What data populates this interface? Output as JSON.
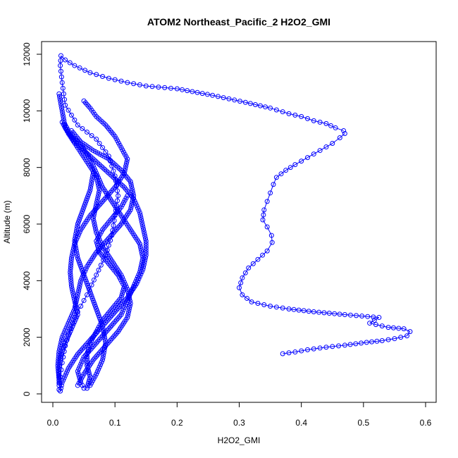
{
  "chart_data": {
    "type": "scatter",
    "title": "ATOM2 Northeast_Pacific_2 H2O2_GMI",
    "xlabel": "H2O2_GMI",
    "ylabel": "Altitude (m)",
    "xlim": [
      0,
      0.6
    ],
    "ylim": [
      0,
      12000
    ],
    "xticks": [
      0,
      0.1,
      0.2,
      0.3,
      0.4,
      0.5,
      0.6
    ],
    "xtick_labels": [
      "0.0",
      "0.1",
      "0.2",
      "0.3",
      "0.4",
      "0.5",
      "0.6"
    ],
    "yticks": [
      0,
      2000,
      4000,
      6000,
      8000,
      10000,
      12000
    ],
    "ytick_labels": [
      "0",
      "2000",
      "4000",
      "6000",
      "8000",
      "10000",
      "12000"
    ],
    "grid": false,
    "marker": "open-circle",
    "color": "#0000ff",
    "series": [
      {
        "points": [
          [
            0.01,
            150
          ],
          [
            0.012,
            600
          ],
          [
            0.015,
            1100
          ],
          [
            0.02,
            1700
          ],
          [
            0.028,
            2300
          ],
          [
            0.04,
            2900
          ],
          [
            0.055,
            3500
          ],
          [
            0.07,
            4200
          ],
          [
            0.085,
            4900
          ],
          [
            0.095,
            5600
          ],
          [
            0.1,
            6300
          ],
          [
            0.105,
            7000
          ],
          [
            0.1,
            7700
          ],
          [
            0.09,
            8400
          ],
          [
            0.07,
            9000
          ],
          [
            0.04,
            9500
          ],
          [
            0.02,
            10200
          ],
          [
            0.015,
            11000
          ],
          [
            0.012,
            11600
          ],
          [
            0.013,
            11950
          ],
          [
            0.02,
            11800
          ],
          [
            0.035,
            11600
          ],
          [
            0.06,
            11350
          ],
          [
            0.09,
            11150
          ],
          [
            0.12,
            11000
          ],
          [
            0.15,
            10880
          ],
          [
            0.18,
            10820
          ],
          [
            0.2,
            10780
          ],
          [
            0.257,
            10550
          ],
          [
            0.31,
            10300
          ],
          [
            0.35,
            10100
          ],
          [
            0.38,
            9900
          ],
          [
            0.4,
            9800
          ],
          [
            0.42,
            9650
          ],
          [
            0.44,
            9550
          ],
          [
            0.455,
            9400
          ],
          [
            0.468,
            9300
          ],
          [
            0.47,
            9200
          ],
          [
            0.462,
            9050
          ],
          [
            0.45,
            8850
          ],
          [
            0.43,
            8600
          ],
          [
            0.41,
            8350
          ],
          [
            0.39,
            8100
          ],
          [
            0.375,
            7900
          ],
          [
            0.36,
            7650
          ],
          [
            0.355,
            7400
          ],
          [
            0.35,
            7100
          ],
          [
            0.345,
            6800
          ],
          [
            0.34,
            6500
          ],
          [
            0.338,
            6150
          ],
          [
            0.345,
            5900
          ],
          [
            0.352,
            5600
          ],
          [
            0.353,
            5350
          ],
          [
            0.345,
            5050
          ],
          [
            0.33,
            4750
          ],
          [
            0.315,
            4450
          ],
          [
            0.305,
            4100
          ],
          [
            0.3,
            3750
          ],
          [
            0.305,
            3500
          ],
          [
            0.32,
            3250
          ],
          [
            0.35,
            3100
          ],
          [
            0.38,
            3000
          ],
          [
            0.42,
            2900
          ],
          [
            0.47,
            2800
          ],
          [
            0.525,
            2700
          ],
          [
            0.51,
            2500
          ],
          [
            0.54,
            2350
          ],
          [
            0.565,
            2300
          ],
          [
            0.575,
            2200
          ],
          [
            0.57,
            2050
          ],
          [
            0.55,
            1950
          ],
          [
            0.53,
            1880
          ],
          [
            0.505,
            1820
          ],
          [
            0.47,
            1720
          ],
          [
            0.44,
            1650
          ],
          [
            0.41,
            1560
          ],
          [
            0.39,
            1480
          ],
          [
            0.37,
            1420
          ]
        ]
      },
      {
        "points": [
          [
            0.02,
            9500
          ],
          [
            0.03,
            9100
          ],
          [
            0.045,
            8800
          ],
          [
            0.06,
            8300
          ],
          [
            0.07,
            7800
          ],
          [
            0.08,
            7300
          ],
          [
            0.095,
            6800
          ],
          [
            0.11,
            6300
          ],
          [
            0.125,
            5800
          ],
          [
            0.14,
            5300
          ],
          [
            0.145,
            4800
          ],
          [
            0.14,
            4300
          ],
          [
            0.13,
            3800
          ],
          [
            0.12,
            3300
          ],
          [
            0.11,
            2800
          ],
          [
            0.09,
            2300
          ],
          [
            0.07,
            1800
          ],
          [
            0.05,
            1300
          ],
          [
            0.04,
            800
          ],
          [
            0.045,
            400
          ],
          [
            0.05,
            200
          ]
        ]
      },
      {
        "points": [
          [
            0.05,
            10350
          ],
          [
            0.06,
            10100
          ],
          [
            0.07,
            9800
          ],
          [
            0.085,
            9500
          ],
          [
            0.1,
            9100
          ],
          [
            0.11,
            8700
          ],
          [
            0.12,
            8300
          ],
          [
            0.115,
            7800
          ],
          [
            0.1,
            7300
          ],
          [
            0.08,
            6800
          ],
          [
            0.06,
            6300
          ],
          [
            0.045,
            5800
          ],
          [
            0.035,
            5300
          ],
          [
            0.03,
            4800
          ],
          [
            0.028,
            4300
          ],
          [
            0.03,
            3800
          ],
          [
            0.035,
            3300
          ],
          [
            0.04,
            2800
          ],
          [
            0.03,
            2300
          ],
          [
            0.02,
            1800
          ],
          [
            0.012,
            1300
          ],
          [
            0.01,
            800
          ],
          [
            0.01,
            300
          ]
        ]
      },
      {
        "points": [
          [
            0.01,
            10600
          ],
          [
            0.015,
            10000
          ],
          [
            0.02,
            9400
          ],
          [
            0.035,
            8900
          ],
          [
            0.055,
            8500
          ],
          [
            0.075,
            8100
          ],
          [
            0.095,
            7700
          ],
          [
            0.115,
            7300
          ],
          [
            0.13,
            6900
          ],
          [
            0.14,
            6400
          ],
          [
            0.145,
            5900
          ],
          [
            0.15,
            5400
          ],
          [
            0.15,
            4900
          ],
          [
            0.145,
            4400
          ],
          [
            0.135,
            3900
          ],
          [
            0.12,
            3400
          ],
          [
            0.1,
            2900
          ],
          [
            0.08,
            2400
          ],
          [
            0.06,
            1900
          ],
          [
            0.04,
            1400
          ],
          [
            0.025,
            900
          ],
          [
            0.015,
            400
          ],
          [
            0.012,
            100
          ]
        ]
      },
      {
        "points": [
          [
            0.015,
            9600
          ],
          [
            0.025,
            9200
          ],
          [
            0.04,
            8700
          ],
          [
            0.055,
            8200
          ],
          [
            0.07,
            7700
          ],
          [
            0.075,
            7200
          ],
          [
            0.07,
            6700
          ],
          [
            0.065,
            6200
          ],
          [
            0.07,
            5700
          ],
          [
            0.08,
            5200
          ],
          [
            0.095,
            4700
          ],
          [
            0.11,
            4200
          ],
          [
            0.12,
            3700
          ],
          [
            0.125,
            3200
          ],
          [
            0.12,
            2700
          ],
          [
            0.105,
            2200
          ],
          [
            0.085,
            1700
          ],
          [
            0.065,
            1200
          ],
          [
            0.05,
            700
          ],
          [
            0.04,
            300
          ]
        ]
      },
      {
        "points": [
          [
            0.03,
            9300
          ],
          [
            0.045,
            8900
          ],
          [
            0.065,
            8600
          ],
          [
            0.09,
            8300
          ],
          [
            0.11,
            7900
          ],
          [
            0.125,
            7500
          ],
          [
            0.13,
            7000
          ],
          [
            0.125,
            6500
          ],
          [
            0.11,
            6000
          ],
          [
            0.09,
            5500
          ],
          [
            0.07,
            5000
          ],
          [
            0.055,
            4500
          ],
          [
            0.045,
            4000
          ],
          [
            0.04,
            3500
          ],
          [
            0.035,
            3000
          ],
          [
            0.025,
            2500
          ],
          [
            0.015,
            2000
          ],
          [
            0.01,
            1500
          ],
          [
            0.008,
            1000
          ],
          [
            0.01,
            500
          ]
        ]
      },
      {
        "points": [
          [
            0.12,
            7000
          ],
          [
            0.11,
            6600
          ],
          [
            0.095,
            6200
          ],
          [
            0.08,
            5800
          ],
          [
            0.07,
            5400
          ],
          [
            0.075,
            5000
          ],
          [
            0.09,
            4600
          ],
          [
            0.105,
            4200
          ],
          [
            0.115,
            3800
          ],
          [
            0.11,
            3400
          ],
          [
            0.095,
            3000
          ],
          [
            0.08,
            2600
          ],
          [
            0.07,
            2200
          ],
          [
            0.06,
            1800
          ],
          [
            0.055,
            1400
          ],
          [
            0.055,
            1000
          ],
          [
            0.06,
            600
          ],
          [
            0.055,
            200
          ]
        ]
      },
      {
        "points": [
          [
            0.065,
            7800
          ],
          [
            0.06,
            7200
          ],
          [
            0.05,
            6600
          ],
          [
            0.04,
            6000
          ],
          [
            0.035,
            5400
          ],
          [
            0.04,
            4800
          ],
          [
            0.05,
            4200
          ],
          [
            0.06,
            3600
          ],
          [
            0.07,
            3000
          ],
          [
            0.08,
            2400
          ],
          [
            0.085,
            1800
          ],
          [
            0.08,
            1200
          ],
          [
            0.07,
            700
          ],
          [
            0.06,
            300
          ]
        ]
      }
    ]
  }
}
